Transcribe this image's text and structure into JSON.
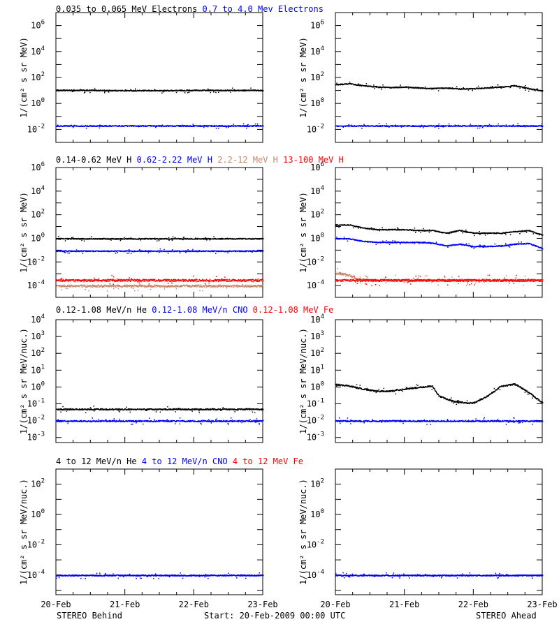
{
  "colors": {
    "black": "#000000",
    "blue": "#0000ff",
    "tan": "#c8876a",
    "red": "#ff0000"
  },
  "footer": {
    "left": "STEREO Behind",
    "center": "Start: 20-Feb-2009 00:00 UTC",
    "right": "STEREO Ahead"
  },
  "chart_data": [
    {
      "type": "scatter",
      "panel": "electrons-behind",
      "title_parts": [
        {
          "text": "0.035 to 0.065 MeV Electrons",
          "color": "black"
        },
        {
          "text": "0.7 to 4.0 Mev Electrons",
          "color": "blue"
        }
      ],
      "ylabel": "1/(cm² s sr MeV)",
      "yscale": "log",
      "ylim": [
        0.001,
        10000000
      ],
      "yticks": [
        {
          "exp": -2
        },
        {
          "exp": 0
        },
        {
          "exp": 2
        },
        {
          "exp": 4
        },
        {
          "exp": 6
        }
      ],
      "xlim": [
        "20-Feb",
        "23-Feb"
      ],
      "xtick_labels": [
        "20-Feb",
        "21-Feb",
        "22-Feb",
        "23-Feb"
      ],
      "series": [
        {
          "color": "black",
          "x": [
            0,
            0.5,
            1,
            1.5,
            2,
            2.5,
            3
          ],
          "y": [
            11,
            11,
            10.5,
            10.5,
            11,
            11,
            11
          ]
        },
        {
          "color": "blue",
          "x": [
            0,
            0.5,
            1,
            1.5,
            2,
            2.5,
            3
          ],
          "y": [
            0.02,
            0.02,
            0.02,
            0.02,
            0.02,
            0.02,
            0.02
          ]
        }
      ]
    },
    {
      "type": "scatter",
      "panel": "electrons-ahead",
      "title_parts": [],
      "ylabel": "1/(cm² s sr MeV)",
      "yscale": "log",
      "ylim": [
        0.001,
        10000000
      ],
      "yticks": [
        {
          "exp": -2
        },
        {
          "exp": 0
        },
        {
          "exp": 2
        },
        {
          "exp": 4
        },
        {
          "exp": 6
        }
      ],
      "xlim": [
        "20-Feb",
        "23-Feb"
      ],
      "xtick_labels": [
        "20-Feb",
        "21-Feb",
        "22-Feb",
        "23-Feb"
      ],
      "series": [
        {
          "color": "black",
          "x": [
            0,
            0.2,
            0.4,
            0.6,
            0.8,
            1,
            1.2,
            1.4,
            1.6,
            1.8,
            2,
            2.2,
            2.4,
            2.6,
            2.8,
            3
          ],
          "y": [
            30,
            35,
            25,
            20,
            18,
            20,
            17,
            15,
            17,
            14,
            15,
            17,
            20,
            25,
            15,
            10
          ]
        },
        {
          "color": "blue",
          "x": [
            0,
            0.5,
            1,
            1.5,
            2,
            2.5,
            3
          ],
          "y": [
            0.02,
            0.02,
            0.02,
            0.02,
            0.02,
            0.02,
            0.02
          ]
        }
      ]
    },
    {
      "type": "scatter",
      "panel": "protons-behind",
      "title_parts": [
        {
          "text": "0.14-0.62 MeV H",
          "color": "black"
        },
        {
          "text": "0.62-2.22 MeV H",
          "color": "blue"
        },
        {
          "text": "2.2-12 MeV H",
          "color": "tan"
        },
        {
          "text": "13-100 MeV H",
          "color": "red"
        }
      ],
      "ylabel": "1/(cm² s sr MeV)",
      "yscale": "log",
      "ylim": [
        1e-05,
        1000000
      ],
      "yticks": [
        {
          "exp": -4
        },
        {
          "exp": -2
        },
        {
          "exp": 0
        },
        {
          "exp": 2
        },
        {
          "exp": 4
        },
        {
          "exp": 6
        }
      ],
      "xlim": [
        "20-Feb",
        "23-Feb"
      ],
      "xtick_labels": [
        "20-Feb",
        "21-Feb",
        "22-Feb",
        "23-Feb"
      ],
      "series": [
        {
          "color": "black",
          "x": [
            0,
            0.5,
            1,
            1.5,
            2,
            2.5,
            3
          ],
          "y": [
            1,
            1,
            1,
            1,
            1,
            1,
            1
          ]
        },
        {
          "color": "blue",
          "x": [
            0,
            0.5,
            1,
            1.5,
            2,
            2.5,
            3
          ],
          "y": [
            0.09,
            0.09,
            0.09,
            0.09,
            0.09,
            0.09,
            0.09
          ]
        },
        {
          "color": "red",
          "x": [
            0,
            0.5,
            1,
            1.5,
            2,
            2.5,
            3
          ],
          "y": [
            0.0003,
            0.0003,
            0.0003,
            0.0003,
            0.0003,
            0.0003,
            0.0003
          ]
        },
        {
          "color": "tan",
          "x": [
            0,
            0.5,
            1,
            1.5,
            2,
            2.5,
            3
          ],
          "y": [
            0.0001,
            0.0001,
            0.0001,
            0.0001,
            0.0001,
            0.0001,
            0.0001
          ]
        }
      ]
    },
    {
      "type": "scatter",
      "panel": "protons-ahead",
      "title_parts": [],
      "ylabel": "1/(cm² s sr MeV)",
      "yscale": "log",
      "ylim": [
        1e-05,
        1000000
      ],
      "yticks": [
        {
          "exp": -4
        },
        {
          "exp": -2
        },
        {
          "exp": 0
        },
        {
          "exp": 2
        },
        {
          "exp": 4
        },
        {
          "exp": 6
        }
      ],
      "xlim": [
        "20-Feb",
        "23-Feb"
      ],
      "xtick_labels": [
        "20-Feb",
        "21-Feb",
        "22-Feb",
        "23-Feb"
      ],
      "series": [
        {
          "color": "black",
          "x": [
            0,
            0.2,
            0.4,
            0.6,
            0.8,
            1,
            1.2,
            1.4,
            1.6,
            1.8,
            2,
            2.2,
            2.4,
            2.6,
            2.8,
            3
          ],
          "y": [
            15,
            15,
            8,
            6,
            6,
            6,
            5,
            5,
            3,
            5,
            3,
            3,
            3,
            4,
            5,
            2
          ]
        },
        {
          "color": "blue",
          "x": [
            0,
            0.2,
            0.4,
            0.6,
            0.8,
            1,
            1.2,
            1.4,
            1.6,
            1.8,
            2,
            2.2,
            2.4,
            2.6,
            2.8,
            3
          ],
          "y": [
            1,
            1,
            0.6,
            0.5,
            0.5,
            0.5,
            0.5,
            0.45,
            0.25,
            0.35,
            0.22,
            0.22,
            0.25,
            0.35,
            0.4,
            0.15
          ]
        },
        {
          "color": "tan",
          "x": [
            0,
            0.05,
            0.1,
            0.15,
            0.2,
            0.3,
            0.5,
            1,
            2,
            3
          ],
          "y": [
            0.0012,
            0.0012,
            0.001,
            0.0009,
            0.0008,
            0.0004,
            0.0003,
            0.0003,
            0.0003,
            0.0003
          ]
        },
        {
          "color": "red",
          "x": [
            0,
            0.5,
            1,
            1.5,
            2,
            2.5,
            3
          ],
          "y": [
            0.0003,
            0.0003,
            0.0003,
            0.0003,
            0.0003,
            0.0003,
            0.0003
          ]
        }
      ]
    },
    {
      "type": "scatter",
      "panel": "heavy-low-behind",
      "title_parts": [
        {
          "text": "0.12-1.08 MeV/n He",
          "color": "black"
        },
        {
          "text": "0.12-1.08 MeV/n CNO",
          "color": "blue"
        },
        {
          "text": "0.12-1.08 MeV Fe",
          "color": "red"
        }
      ],
      "ylabel": "1/(cm² s sr MeV/nuc.)",
      "yscale": "log",
      "ylim": [
        0.0005,
        10000
      ],
      "yticks": [
        {
          "exp": -3
        },
        {
          "exp": -2
        },
        {
          "exp": -1
        },
        {
          "exp": 0
        },
        {
          "exp": 1
        },
        {
          "exp": 2
        },
        {
          "exp": 3
        },
        {
          "exp": 4
        }
      ],
      "xlim": [
        "20-Feb",
        "23-Feb"
      ],
      "xtick_labels": [
        "20-Feb",
        "21-Feb",
        "22-Feb",
        "23-Feb"
      ],
      "series": [
        {
          "color": "black",
          "x": [
            0,
            0.5,
            1,
            1.5,
            2,
            2.5,
            3
          ],
          "y": [
            0.05,
            0.05,
            0.05,
            0.05,
            0.05,
            0.05,
            0.05
          ]
        },
        {
          "color": "blue",
          "x": [
            0,
            0.5,
            1,
            1.5,
            2,
            2.5,
            3
          ],
          "y": [
            0.01,
            0.01,
            0.01,
            0.01,
            0.01,
            0.01,
            0.01
          ]
        }
      ]
    },
    {
      "type": "scatter",
      "panel": "heavy-low-ahead",
      "title_parts": [],
      "ylabel": "1/(cm² s sr MeV/nuc.)",
      "yscale": "log",
      "ylim": [
        0.0005,
        10000
      ],
      "yticks": [
        {
          "exp": -3
        },
        {
          "exp": -2
        },
        {
          "exp": -1
        },
        {
          "exp": 0
        },
        {
          "exp": 1
        },
        {
          "exp": 2
        },
        {
          "exp": 3
        },
        {
          "exp": 4
        }
      ],
      "xlim": [
        "20-Feb",
        "23-Feb"
      ],
      "xtick_labels": [
        "20-Feb",
        "21-Feb",
        "22-Feb",
        "23-Feb"
      ],
      "series": [
        {
          "color": "black",
          "x": [
            0,
            0.2,
            0.4,
            0.6,
            0.8,
            1,
            1.2,
            1.4,
            1.5,
            1.7,
            1.9,
            2,
            2.2,
            2.4,
            2.6,
            2.8,
            3
          ],
          "y": [
            1.5,
            1.2,
            0.8,
            0.6,
            0.6,
            0.8,
            1,
            1.2,
            0.3,
            0.15,
            0.12,
            0.12,
            0.3,
            1.2,
            1.6,
            0.5,
            0.12
          ]
        },
        {
          "color": "blue",
          "x": [
            0,
            0.5,
            1,
            1.5,
            2,
            2.5,
            3
          ],
          "y": [
            0.01,
            0.01,
            0.01,
            0.01,
            0.01,
            0.01,
            0.01
          ]
        }
      ]
    },
    {
      "type": "scatter",
      "panel": "heavy-high-behind",
      "title_parts": [
        {
          "text": "4 to 12 MeV/n He",
          "color": "black"
        },
        {
          "text": "4 to 12 MeV/n CNO",
          "color": "blue"
        },
        {
          "text": "4 to 12 MeV Fe",
          "color": "red"
        }
      ],
      "ylabel": "1/(cm² s sr MeV/nuc.)",
      "yscale": "log",
      "ylim": [
        5e-06,
        1000
      ],
      "yticks": [
        {
          "exp": -4
        },
        {
          "exp": -2
        },
        {
          "exp": 0
        },
        {
          "exp": 2
        }
      ],
      "xlim": [
        "20-Feb",
        "23-Feb"
      ],
      "xtick_labels": [
        "20-Feb",
        "21-Feb",
        "22-Feb",
        "23-Feb"
      ],
      "series": [
        {
          "color": "blue",
          "x": [
            0,
            0.5,
            1,
            1.5,
            2,
            2.5,
            3
          ],
          "y": [
            0.0001,
            0.0001,
            0.0001,
            0.0001,
            0.0001,
            0.0001,
            0.0001
          ]
        }
      ]
    },
    {
      "type": "scatter",
      "panel": "heavy-high-ahead",
      "title_parts": [],
      "ylabel": "1/(cm² s sr MeV/nuc.)",
      "yscale": "log",
      "ylim": [
        5e-06,
        1000
      ],
      "yticks": [
        {
          "exp": -4
        },
        {
          "exp": -2
        },
        {
          "exp": 0
        },
        {
          "exp": 2
        }
      ],
      "xlim": [
        "20-Feb",
        "23-Feb"
      ],
      "xtick_labels": [
        "20-Feb",
        "21-Feb",
        "22-Feb",
        "23-Feb"
      ],
      "series": [
        {
          "color": "blue",
          "x": [
            0,
            0.5,
            1,
            1.5,
            2,
            2.5,
            3
          ],
          "y": [
            0.0001,
            0.0001,
            0.0001,
            0.0001,
            0.0001,
            0.0001,
            0.0001
          ]
        }
      ]
    }
  ]
}
